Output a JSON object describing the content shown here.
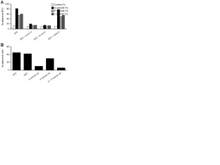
{
  "chart_data": [
    {
      "type": "bar",
      "label": "A",
      "ylabel": "% adherent EPC",
      "categories": [
        "EPC",
        "EPC + sLeX-Fc",
        "EPC + E-sel-Fc",
        "EPC + CD6-Fc"
      ],
      "series": [
        {
          "name": "Control Fc",
          "color": "#ffffff",
          "values": [
            12,
            10,
            11,
            10
          ]
        },
        {
          "name": "E-selectin Fc",
          "color": "#000000",
          "values": [
            82,
            20,
            15,
            78
          ]
        },
        {
          "name": "P-selectin Fc",
          "color": "#9a9a9a",
          "values": [
            55,
            14,
            12,
            50
          ]
        },
        {
          "name": "L-selectin Fc",
          "color": "#555555",
          "values": [
            60,
            15,
            13,
            55
          ]
        }
      ],
      "ylim": [
        0,
        100
      ],
      "yticks": [
        0,
        20,
        40,
        60,
        80,
        100
      ],
      "legend": "top-right"
    },
    {
      "type": "bar",
      "label": "B",
      "ylabel": "% adherent cells",
      "categories": [
        "EPC",
        "IgG1",
        "E-selectin Ab",
        "P-selectin Ab",
        "E + P-selectin Ab"
      ],
      "series": [
        {
          "name": "EPC + E-selectin-Fc",
          "color": "#000000",
          "values": [
            45,
            42,
            10,
            30,
            6
          ]
        }
      ],
      "ylim": [
        0,
        60
      ],
      "yticks": [
        0,
        20,
        40,
        60
      ],
      "legend": "none"
    }
  ]
}
